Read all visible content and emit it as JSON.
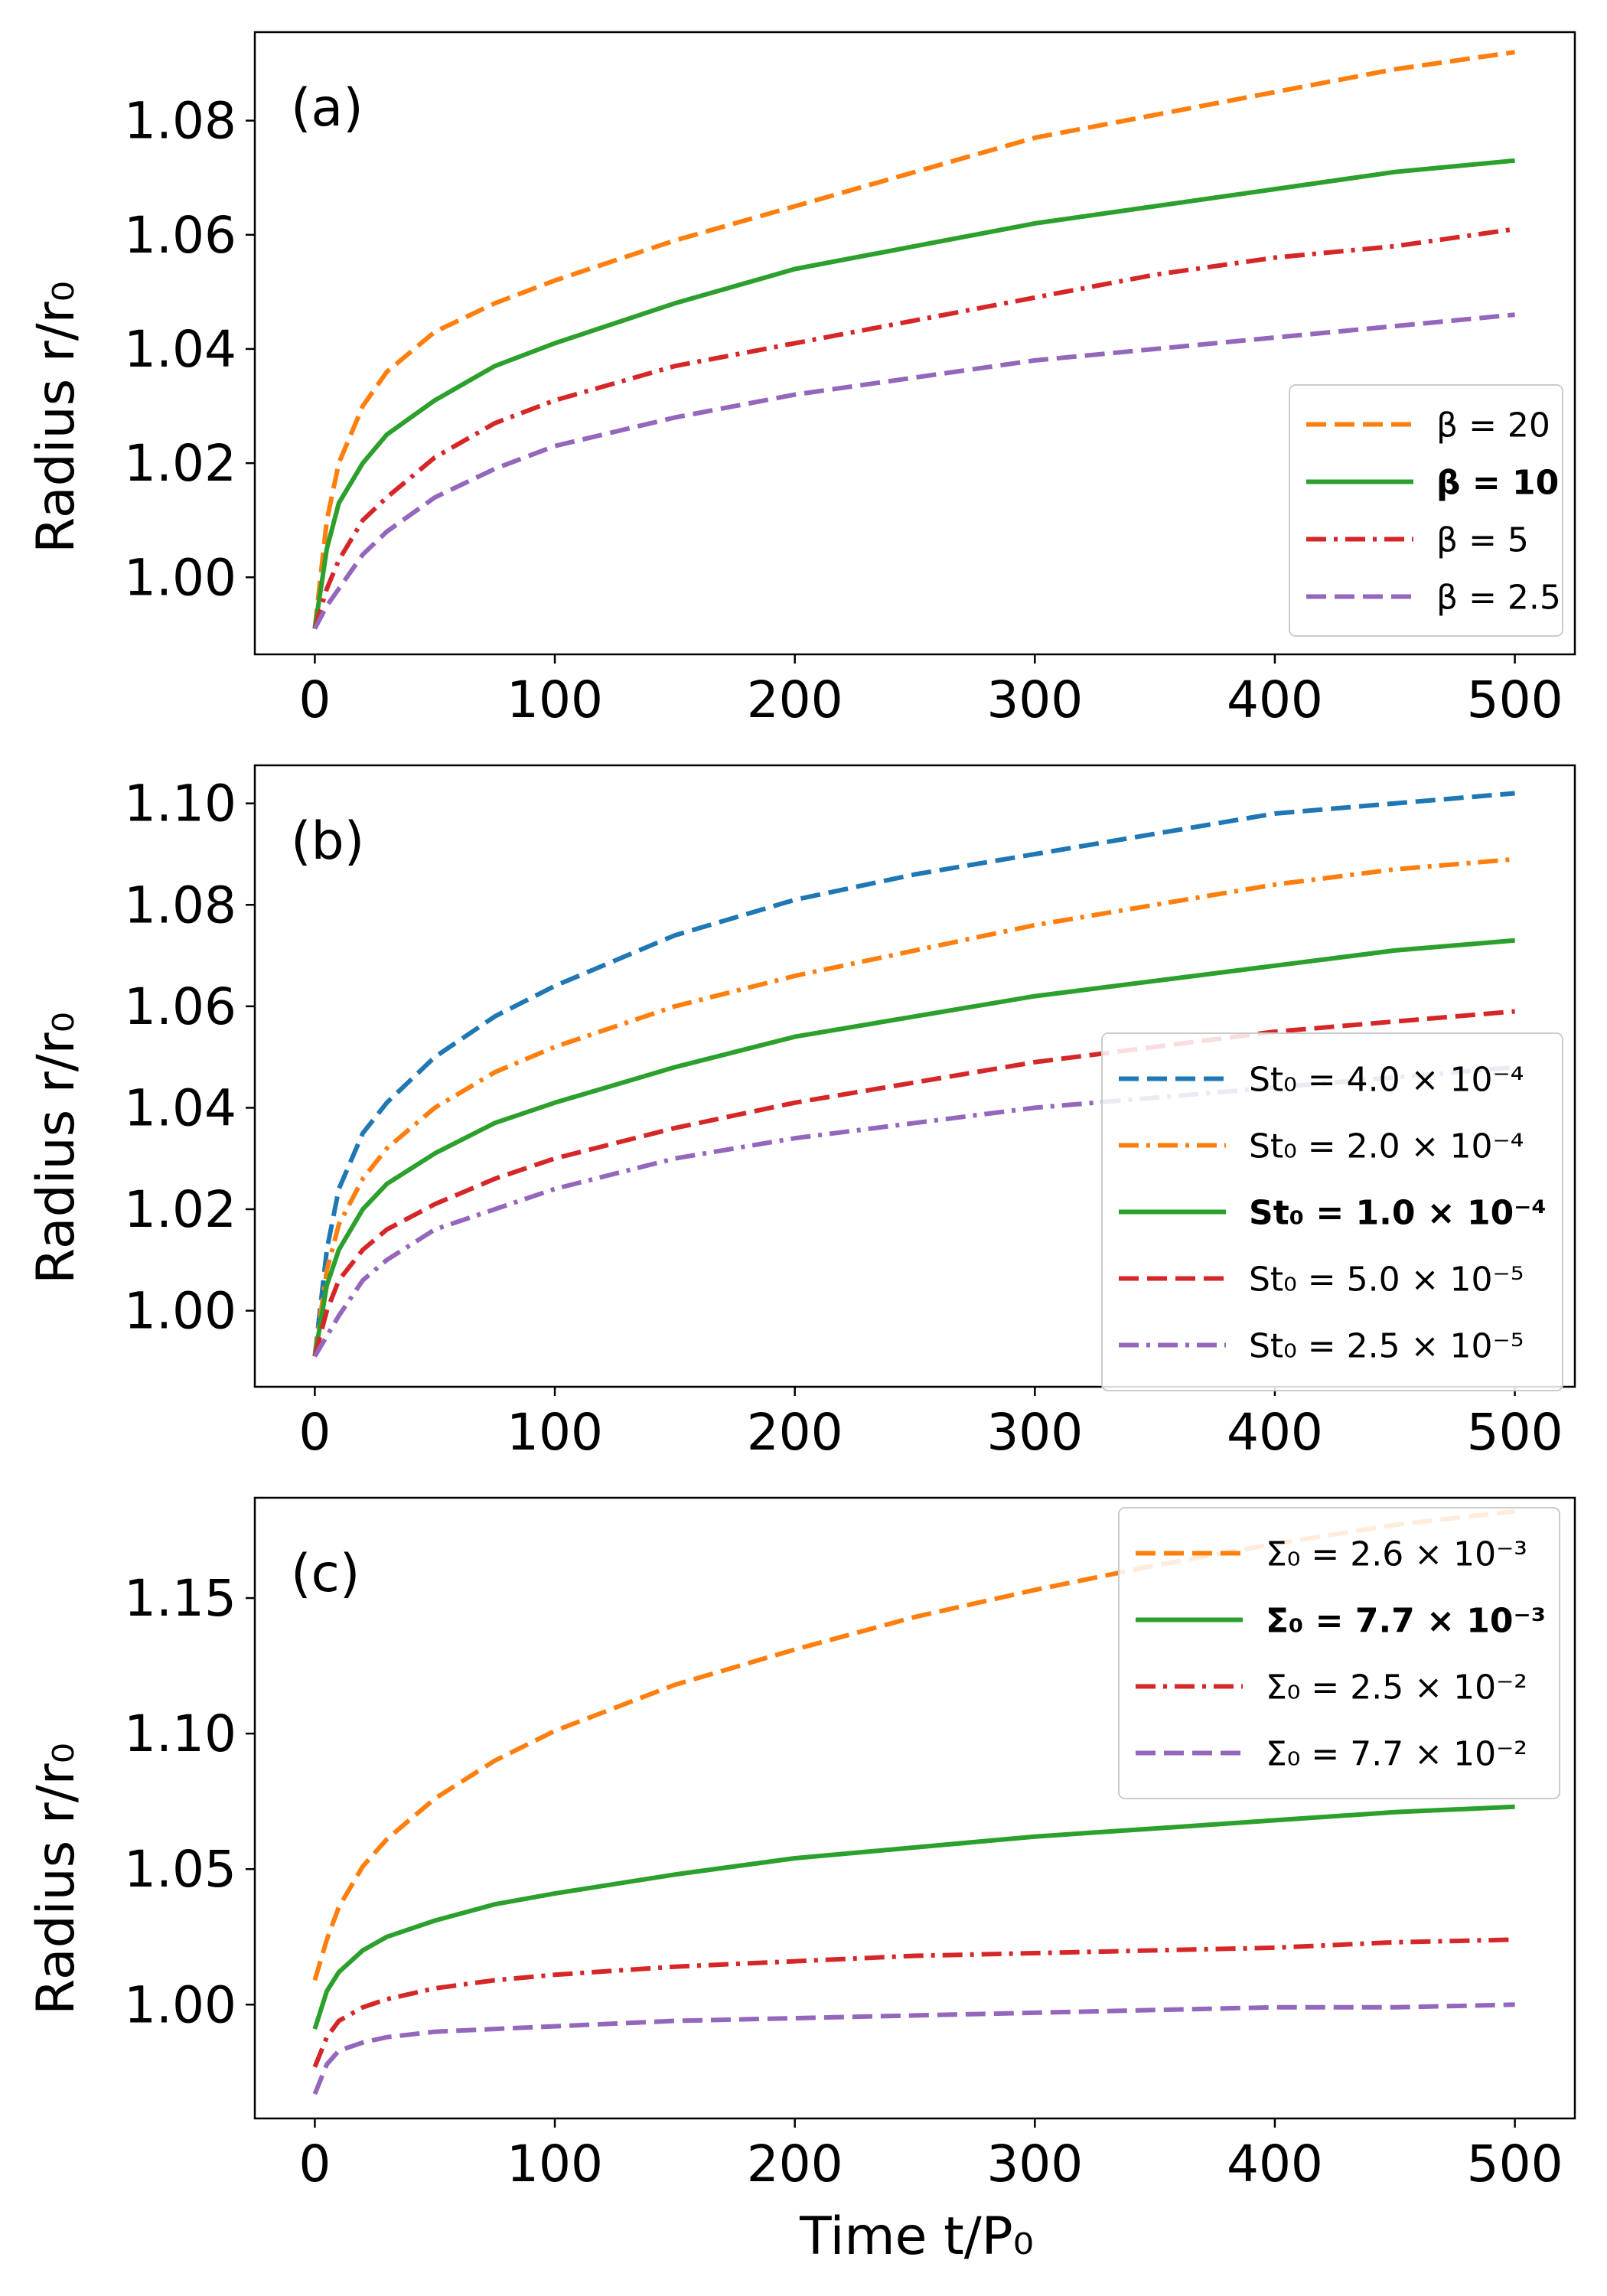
{
  "figure": {
    "ylabel": "Radius r/r₀",
    "xlabel": "Time t/P₀"
  },
  "chart_data": [
    {
      "type": "line",
      "panel": "(a)",
      "xlim": [
        -25,
        525
      ],
      "ylim": [
        0.9865,
        1.0955
      ],
      "xticks": [
        0,
        100,
        200,
        300,
        400,
        500
      ],
      "xtick_labels": [
        "0",
        "100",
        "200",
        "300",
        "400",
        "500"
      ],
      "yticks": [
        1.0,
        1.02,
        1.04,
        1.06,
        1.08
      ],
      "ytick_labels": [
        "1.00",
        "1.02",
        "1.04",
        "1.06",
        "1.08"
      ],
      "legend_position": "lower-right",
      "series": [
        {
          "name": "β = 20",
          "bold": false,
          "color": "#ff7f0e",
          "dash": "dashed",
          "x": [
            0,
            5,
            10,
            20,
            30,
            50,
            75,
            100,
            150,
            200,
            250,
            300,
            350,
            400,
            450,
            500
          ],
          "y": [
            0.991,
            1.01,
            1.02,
            1.03,
            1.036,
            1.043,
            1.048,
            1.052,
            1.059,
            1.065,
            1.071,
            1.077,
            1.081,
            1.085,
            1.089,
            1.092
          ]
        },
        {
          "name": "β = 10",
          "bold": true,
          "color": "#2ca02c",
          "dash": "solid",
          "x": [
            0,
            5,
            10,
            20,
            30,
            50,
            75,
            100,
            150,
            200,
            250,
            300,
            350,
            400,
            450,
            500
          ],
          "y": [
            0.991,
            1.005,
            1.013,
            1.02,
            1.025,
            1.031,
            1.037,
            1.041,
            1.048,
            1.054,
            1.058,
            1.062,
            1.065,
            1.068,
            1.071,
            1.073
          ]
        },
        {
          "name": "β = 5",
          "bold": false,
          "color": "#d62728",
          "dash": "dashdot",
          "x": [
            0,
            5,
            10,
            20,
            30,
            50,
            75,
            100,
            150,
            200,
            250,
            300,
            350,
            400,
            450,
            500
          ],
          "y": [
            0.991,
            0.998,
            1.003,
            1.01,
            1.014,
            1.021,
            1.027,
            1.031,
            1.037,
            1.041,
            1.045,
            1.049,
            1.053,
            1.056,
            1.058,
            1.061
          ]
        },
        {
          "name": "β = 2.5",
          "bold": false,
          "color": "#9467bd",
          "dash": "dashed",
          "x": [
            0,
            5,
            10,
            20,
            30,
            50,
            75,
            100,
            150,
            200,
            250,
            300,
            350,
            400,
            450,
            500
          ],
          "y": [
            0.991,
            0.995,
            0.998,
            1.004,
            1.008,
            1.014,
            1.019,
            1.023,
            1.028,
            1.032,
            1.035,
            1.038,
            1.04,
            1.042,
            1.044,
            1.046
          ]
        }
      ]
    },
    {
      "type": "line",
      "panel": "(b)",
      "xlim": [
        -25,
        525
      ],
      "ylim": [
        0.985,
        1.1075
      ],
      "xticks": [
        0,
        100,
        200,
        300,
        400,
        500
      ],
      "xtick_labels": [
        "0",
        "100",
        "200",
        "300",
        "400",
        "500"
      ],
      "yticks": [
        1.0,
        1.02,
        1.04,
        1.06,
        1.08,
        1.1
      ],
      "ytick_labels": [
        "1.00",
        "1.02",
        "1.04",
        "1.06",
        "1.08",
        "1.10"
      ],
      "legend_position": "lower-right",
      "series": [
        {
          "name": "St₀ = 4.0 × 10⁻⁴",
          "bold": false,
          "color": "#1f77b4",
          "dash": "dashed",
          "x": [
            0,
            5,
            10,
            20,
            30,
            50,
            75,
            100,
            150,
            200,
            250,
            300,
            350,
            400,
            450,
            500
          ],
          "y": [
            0.991,
            1.012,
            1.024,
            1.035,
            1.041,
            1.05,
            1.058,
            1.064,
            1.074,
            1.081,
            1.086,
            1.09,
            1.094,
            1.098,
            1.1,
            1.102
          ]
        },
        {
          "name": "St₀ = 2.0 × 10⁻⁴",
          "bold": false,
          "color": "#ff7f0e",
          "dash": "dashdot",
          "x": [
            0,
            5,
            10,
            20,
            30,
            50,
            75,
            100,
            150,
            200,
            250,
            300,
            350,
            400,
            450,
            500
          ],
          "y": [
            0.991,
            1.008,
            1.017,
            1.026,
            1.032,
            1.04,
            1.047,
            1.052,
            1.06,
            1.066,
            1.071,
            1.076,
            1.08,
            1.084,
            1.087,
            1.089
          ]
        },
        {
          "name": "St₀ = 1.0 × 10⁻⁴",
          "bold": true,
          "color": "#2ca02c",
          "dash": "solid",
          "x": [
            0,
            5,
            10,
            20,
            30,
            50,
            75,
            100,
            150,
            200,
            250,
            300,
            350,
            400,
            450,
            500
          ],
          "y": [
            0.991,
            1.005,
            1.012,
            1.02,
            1.025,
            1.031,
            1.037,
            1.041,
            1.048,
            1.054,
            1.058,
            1.062,
            1.065,
            1.068,
            1.071,
            1.073
          ]
        },
        {
          "name": "St₀ = 5.0 × 10⁻⁵",
          "bold": false,
          "color": "#d62728",
          "dash": "dashed",
          "x": [
            0,
            5,
            10,
            20,
            30,
            50,
            75,
            100,
            150,
            200,
            250,
            300,
            350,
            400,
            450,
            500
          ],
          "y": [
            0.991,
            1.0,
            1.006,
            1.012,
            1.016,
            1.021,
            1.026,
            1.03,
            1.036,
            1.041,
            1.045,
            1.049,
            1.052,
            1.055,
            1.057,
            1.059
          ]
        },
        {
          "name": "St₀ = 2.5 × 10⁻⁵",
          "bold": false,
          "color": "#9467bd",
          "dash": "dashdot",
          "x": [
            0,
            5,
            10,
            20,
            30,
            50,
            75,
            100,
            150,
            200,
            250,
            300,
            350,
            400,
            450,
            500
          ],
          "y": [
            0.991,
            0.995,
            0.999,
            1.006,
            1.01,
            1.016,
            1.02,
            1.024,
            1.03,
            1.034,
            1.037,
            1.04,
            1.042,
            1.044,
            1.046,
            1.048
          ]
        }
      ]
    },
    {
      "type": "line",
      "panel": "(c)",
      "xlim": [
        -25,
        525
      ],
      "ylim": [
        0.958,
        1.187
      ],
      "xticks": [
        0,
        100,
        200,
        300,
        400,
        500
      ],
      "xtick_labels": [
        "0",
        "100",
        "200",
        "300",
        "400",
        "500"
      ],
      "yticks": [
        1.0,
        1.05,
        1.1,
        1.15
      ],
      "ytick_labels": [
        "1.00",
        "1.05",
        "1.10",
        "1.15"
      ],
      "legend_position": "upper-right",
      "series": [
        {
          "name": "Σ₀ = 2.6 × 10⁻³",
          "bold": false,
          "color": "#ff7f0e",
          "dash": "dashed",
          "x": [
            0,
            5,
            10,
            20,
            30,
            50,
            75,
            100,
            150,
            200,
            250,
            300,
            350,
            400,
            450,
            500
          ],
          "y": [
            1.009,
            1.024,
            1.036,
            1.051,
            1.061,
            1.076,
            1.09,
            1.101,
            1.118,
            1.131,
            1.143,
            1.153,
            1.162,
            1.17,
            1.177,
            1.182
          ]
        },
        {
          "name": "Σ₀ = 7.7 × 10⁻³",
          "bold": true,
          "color": "#2ca02c",
          "dash": "solid",
          "x": [
            0,
            5,
            10,
            20,
            30,
            50,
            75,
            100,
            150,
            200,
            250,
            300,
            350,
            400,
            450,
            500
          ],
          "y": [
            0.991,
            1.005,
            1.012,
            1.02,
            1.025,
            1.031,
            1.037,
            1.041,
            1.048,
            1.054,
            1.058,
            1.062,
            1.065,
            1.068,
            1.071,
            1.073
          ]
        },
        {
          "name": "Σ₀ = 2.5 × 10⁻²",
          "bold": false,
          "color": "#d62728",
          "dash": "dashdot",
          "x": [
            0,
            5,
            10,
            20,
            30,
            50,
            75,
            100,
            150,
            200,
            250,
            300,
            350,
            400,
            450,
            500
          ],
          "y": [
            0.977,
            0.988,
            0.994,
            0.999,
            1.002,
            1.006,
            1.009,
            1.011,
            1.014,
            1.016,
            1.018,
            1.019,
            1.02,
            1.021,
            1.023,
            1.024
          ]
        },
        {
          "name": "Σ₀ = 7.7 × 10⁻²",
          "bold": false,
          "color": "#9467bd",
          "dash": "dashed",
          "x": [
            0,
            5,
            10,
            20,
            30,
            50,
            75,
            100,
            150,
            200,
            250,
            300,
            350,
            400,
            450,
            500
          ],
          "y": [
            0.967,
            0.978,
            0.983,
            0.986,
            0.988,
            0.99,
            0.991,
            0.992,
            0.994,
            0.995,
            0.996,
            0.997,
            0.998,
            0.999,
            0.999,
            1.0
          ]
        }
      ]
    }
  ]
}
